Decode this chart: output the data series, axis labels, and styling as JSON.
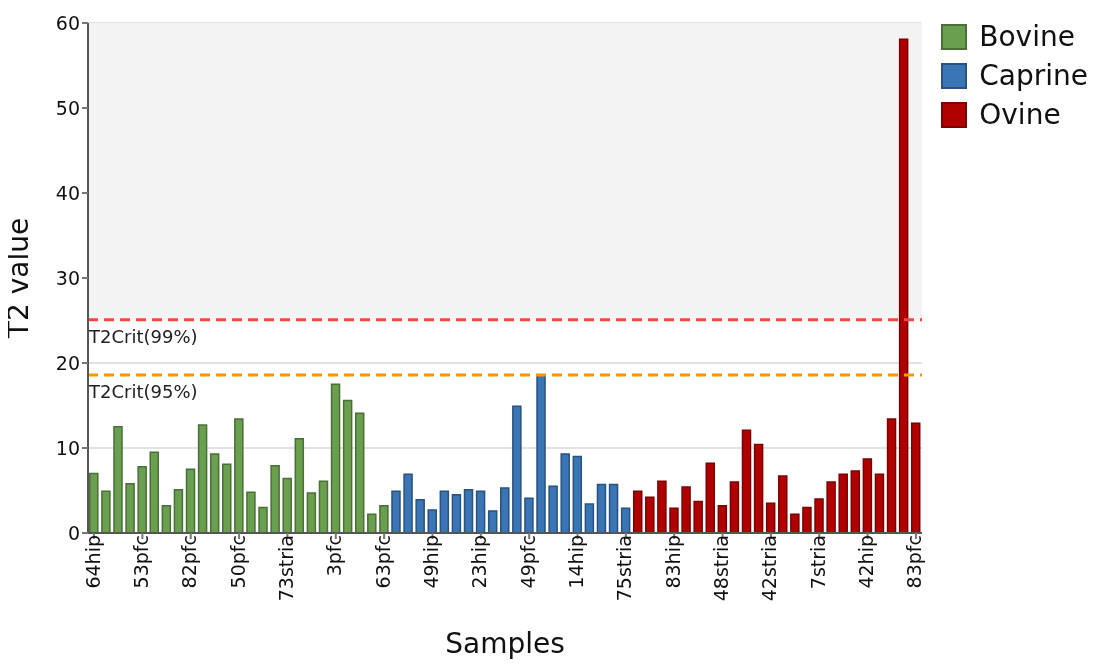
{
  "chart_data": {
    "type": "bar",
    "xlabel": "Samples",
    "ylabel": "T2 value",
    "categories": [
      "64hip",
      null,
      null,
      null,
      "53pfc",
      null,
      null,
      null,
      "82pfc",
      null,
      null,
      null,
      "50pfc",
      null,
      null,
      null,
      "73stria",
      null,
      null,
      null,
      "3pfc",
      null,
      null,
      null,
      "63pfc",
      null,
      null,
      null,
      "49hip",
      null,
      null,
      null,
      "23hip",
      null,
      null,
      null,
      "49pfc",
      null,
      null,
      null,
      "14hip",
      null,
      null,
      null,
      "75stria",
      null,
      null,
      null,
      "83hip",
      null,
      null,
      null,
      "48stria",
      null,
      null,
      null,
      "42stria",
      null,
      null,
      null,
      "7stria",
      null,
      null,
      null,
      "42hip",
      null,
      null,
      null,
      "83pfc"
    ],
    "stacked": true,
    "series": [
      {
        "name": "Bovine",
        "color": "#6a9f4f",
        "values": [
          7.0,
          4.9,
          12.5,
          5.8,
          7.8,
          9.5,
          3.2,
          5.1,
          7.5,
          12.7,
          9.3,
          8.1,
          13.4,
          4.8,
          3.0,
          7.9,
          6.4,
          11.1,
          4.7,
          6.1,
          17.5,
          15.6,
          14.1,
          2.2,
          3.2,
          null,
          null,
          null,
          null,
          null,
          null,
          null,
          null,
          null,
          null,
          null,
          null,
          null,
          null,
          null,
          null,
          null,
          null,
          null,
          null,
          null,
          null,
          null,
          null,
          null,
          null,
          null,
          null,
          null,
          null,
          null,
          null,
          null,
          null,
          null,
          null,
          null,
          null,
          null,
          null,
          null,
          null,
          null,
          null
        ]
      },
      {
        "name": "Caprine",
        "color": "#3a75b5",
        "values": [
          null,
          null,
          null,
          null,
          null,
          null,
          null,
          null,
          null,
          null,
          null,
          null,
          null,
          null,
          null,
          null,
          null,
          null,
          null,
          null,
          null,
          null,
          null,
          null,
          null,
          4.9,
          6.9,
          3.9,
          2.7,
          4.9,
          4.5,
          5.1,
          4.9,
          2.6,
          5.3,
          14.9,
          4.1,
          18.6,
          5.5,
          9.3,
          9.0,
          3.4,
          5.7,
          5.7,
          2.9,
          null,
          null,
          null,
          null,
          null,
          null,
          null,
          null,
          null,
          null,
          null,
          null,
          null,
          null,
          null,
          null,
          null,
          null,
          null,
          null,
          null,
          null,
          null,
          null
        ]
      },
      {
        "name": "Ovine",
        "color": "#b00000",
        "values": [
          null,
          null,
          null,
          null,
          null,
          null,
          null,
          null,
          null,
          null,
          null,
          null,
          null,
          null,
          null,
          null,
          null,
          null,
          null,
          null,
          null,
          null,
          null,
          null,
          null,
          null,
          null,
          null,
          null,
          null,
          null,
          null,
          null,
          null,
          null,
          null,
          null,
          null,
          null,
          null,
          null,
          null,
          null,
          null,
          null,
          4.9,
          4.2,
          6.1,
          2.9,
          5.4,
          3.7,
          8.2,
          3.2,
          6.0,
          12.1,
          10.4,
          3.5,
          6.7,
          2.2,
          3.0,
          4.0,
          6.0,
          6.9,
          7.3,
          8.7,
          6.9,
          13.4,
          58.1,
          12.9
        ]
      }
    ],
    "ylim": [
      0,
      60
    ],
    "yticks": [
      0,
      10,
      20,
      30,
      40,
      50,
      60
    ],
    "grid": "y",
    "legend": "top right",
    "ref_lines": [
      {
        "axis": "y",
        "value": 25.1,
        "label": "T2Crit(99%)",
        "color": "#f04a3f",
        "line_style": "dashed"
      },
      {
        "axis": "y",
        "value": 18.6,
        "label": "T2Crit(95%)",
        "color": "#ff9900",
        "line_style": "dashed"
      }
    ],
    "bands": [
      {
        "axis": "y",
        "from": 25.1,
        "to": 60,
        "color": "#f3f3f3"
      }
    ]
  }
}
